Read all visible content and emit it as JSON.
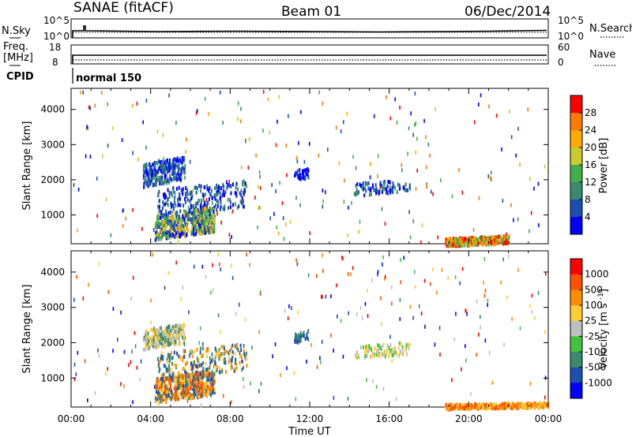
{
  "header": {
    "site": "SANAE (fitACF)",
    "beam": "Beam 01",
    "date": "06/Dec/2014"
  },
  "top_panels": {
    "nsky_label": "N.Sky",
    "nsky_ticks": [
      "10^5",
      "10^0"
    ],
    "nsearch_label": "N.Search",
    "nsearch_ticks": [
      "10^5",
      "10^0"
    ],
    "freq_label": "Freq.",
    "freq_unit": "[MHz]",
    "freq_ticks": [
      "18",
      "8"
    ],
    "nave_label": "Nave",
    "nave_ticks": [
      "60",
      "0"
    ],
    "cpid_label": "CPID",
    "cpid_value": "normal 150"
  },
  "chart_data": [
    {
      "type": "heatmap",
      "name": "power",
      "ylabel": "Slant Range [km]",
      "xlabel": "",
      "xlim": [
        0,
        24
      ],
      "ylim": [
        180,
        4600
      ],
      "yticks": [
        1000,
        2000,
        3000,
        4000
      ],
      "colorbar_label": "Power [dB]",
      "colorbar_ticks": [
        "28",
        "24",
        "20",
        "16",
        "12",
        "8",
        "4"
      ],
      "colorbar_colors": [
        "#0000ff",
        "#1d4fb3",
        "#3b8a6e",
        "#42b04a",
        "#c9cc2e",
        "#ffaa00",
        "#ff7a00",
        "#ff0000"
      ],
      "clusters": [
        {
          "t0": 3.6,
          "t1": 5.7,
          "r0": 1950,
          "r1": 2600,
          "n": 260,
          "colors": [
            "#0000ff",
            "#1d4fb3",
            "#3b8a6e"
          ]
        },
        {
          "t0": 4.3,
          "t1": 8.8,
          "r0": 1150,
          "r1": 1900,
          "n": 230,
          "colors": [
            "#0000ff",
            "#1d4fb3",
            "#3b8a6e"
          ]
        },
        {
          "t0": 4.2,
          "t1": 7.2,
          "r0": 450,
          "r1": 1150,
          "n": 520,
          "colors": [
            "#0000ff",
            "#1d4fb3",
            "#3b8a6e",
            "#42b04a",
            "#c9cc2e",
            "#ffaa00"
          ]
        },
        {
          "t0": 14.2,
          "t1": 17.0,
          "r0": 1650,
          "r1": 2000,
          "n": 90,
          "colors": [
            "#0000ff",
            "#1d4fb3",
            "#3b8a6e"
          ]
        },
        {
          "t0": 18.8,
          "t1": 22.0,
          "r0": 190,
          "r1": 420,
          "n": 300,
          "colors": [
            "#ffaa00",
            "#ff7a00",
            "#ff0000",
            "#42b04a"
          ]
        },
        {
          "t0": 11.2,
          "t1": 11.9,
          "r0": 2050,
          "r1": 2350,
          "n": 40,
          "colors": [
            "#0000ff",
            "#1d4fb3"
          ]
        }
      ]
    },
    {
      "type": "heatmap",
      "name": "velocity",
      "ylabel": "Slant Range [km]",
      "xlabel": "Time UT",
      "xlim": [
        0,
        24
      ],
      "ylim": [
        180,
        4600
      ],
      "xticks": [
        "00:00",
        "04:00",
        "08:00",
        "12:00",
        "16:00",
        "20:00",
        "00:00"
      ],
      "yticks": [
        1000,
        2000,
        3000,
        4000
      ],
      "colorbar_label": "Velocity [m s^-1]",
      "colorbar_ticks": [
        "1000",
        "500",
        "100",
        "25",
        "-25",
        "-100",
        "-500",
        "-1000"
      ],
      "colorbar_colors": [
        "#0000ff",
        "#1d4fb3",
        "#3b8a6e",
        "#42c442",
        "#bfbfbf",
        "#ffcc33",
        "#ff8c00",
        "#ff5000",
        "#ff0000"
      ],
      "clusters": [
        {
          "t0": 3.6,
          "t1": 5.7,
          "r0": 1950,
          "r1": 2500,
          "n": 260,
          "colors": [
            "#bfbfbf",
            "#ffcc33",
            "#3b8a6e"
          ]
        },
        {
          "t0": 4.3,
          "t1": 8.8,
          "r0": 1150,
          "r1": 1900,
          "n": 230,
          "colors": [
            "#1d4fb3",
            "#3b8a6e",
            "#ffcc33",
            "#ff8c00"
          ]
        },
        {
          "t0": 4.2,
          "t1": 7.2,
          "r0": 450,
          "r1": 1150,
          "n": 520,
          "colors": [
            "#ff8c00",
            "#ffcc33",
            "#1d4fb3",
            "#3b8a6e",
            "#ff5000"
          ]
        },
        {
          "t0": 14.2,
          "t1": 17.0,
          "r0": 1650,
          "r1": 2000,
          "n": 90,
          "colors": [
            "#42c442",
            "#bfbfbf",
            "#ffcc33"
          ]
        },
        {
          "t0": 18.8,
          "t1": 24.0,
          "r0": 190,
          "r1": 330,
          "n": 320,
          "colors": [
            "#ff8c00",
            "#ff5000",
            "#ffcc33"
          ]
        },
        {
          "t0": 11.2,
          "t1": 11.9,
          "r0": 2050,
          "r1": 2350,
          "n": 40,
          "colors": [
            "#1d4fb3",
            "#3b8a6e"
          ]
        }
      ]
    }
  ]
}
